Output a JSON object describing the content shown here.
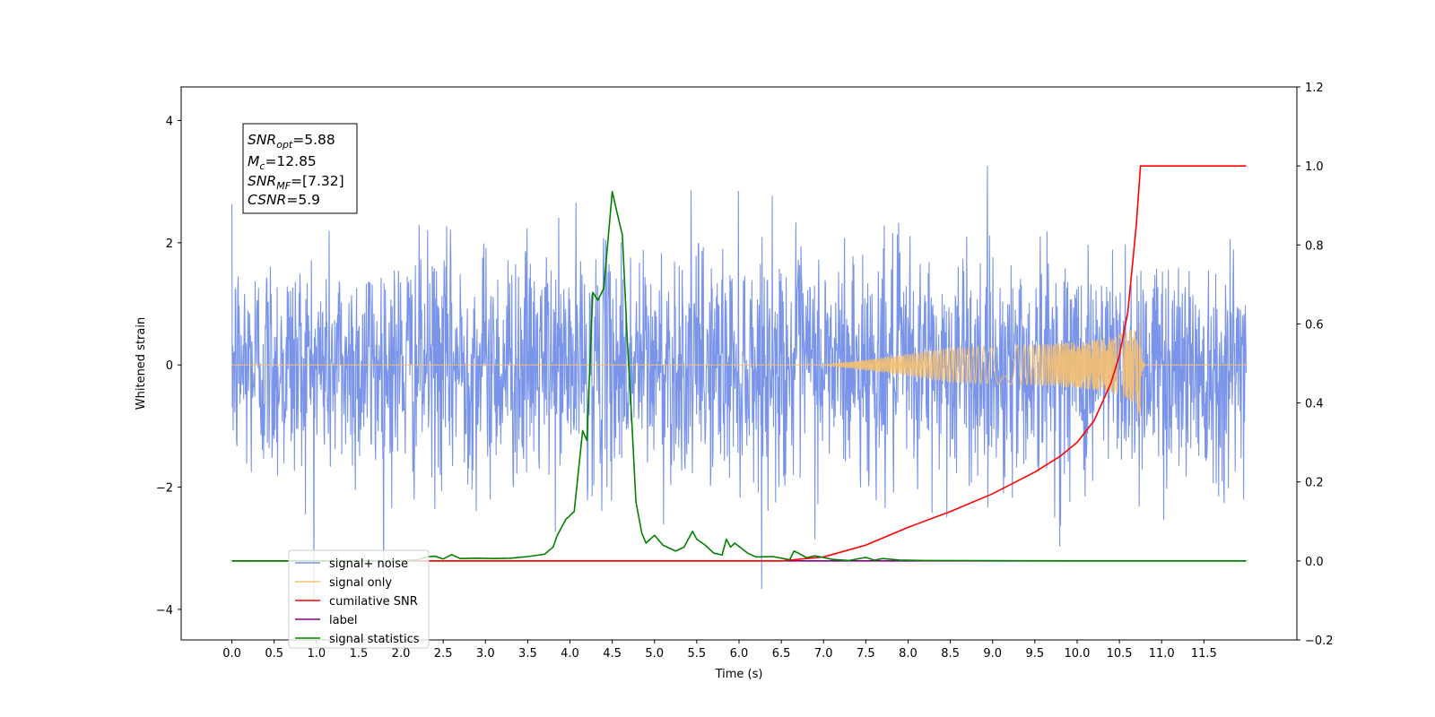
{
  "chart_data": {
    "type": "line",
    "title": "",
    "xlabel": "Time (s)",
    "ylabel": "Whitened strain",
    "xlim": [
      -0.6,
      12.6
    ],
    "ylim": [
      -4.5,
      4.55
    ],
    "y2lim": [
      -0.2,
      1.2
    ],
    "grid": false,
    "legend_position": "lower-left",
    "x_ticks": [
      "0.0",
      "0.5",
      "1.0",
      "1.5",
      "2.0",
      "2.5",
      "3.0",
      "3.5",
      "4.0",
      "4.5",
      "5.0",
      "5.5",
      "6.0",
      "6.5",
      "7.0",
      "7.5",
      "8.0",
      "8.5",
      "9.0",
      "9.5",
      "10.0",
      "10.5",
      "11.0",
      "11.5"
    ],
    "y_ticks": [
      "4",
      "2",
      "0",
      "−2",
      "−4"
    ],
    "y2_ticks": [
      "1.2",
      "1.0",
      "0.8",
      "0.6",
      "0.4",
      "0.2",
      "0.0",
      "−0.2"
    ],
    "annotation": {
      "snr_opt_sym": "SNR",
      "snr_opt_sub": "opt",
      "snr_opt_val": "=5.88",
      "mc_sym": "M",
      "mc_sub": "c",
      "mc_val": "=12.85",
      "snr_mf_sym": "SNR",
      "snr_mf_sub": "MF",
      "snr_mf_val": "=[7.32]",
      "csnr_sym": "CSNR",
      "csnr_val": "=5.9"
    },
    "series": [
      {
        "name": "signal+ noise",
        "axis": "left",
        "color": "#7994e8",
        "description_values": "whitened noise, approx gaussian, amplitude within about ±2.5 with spikes to ±4",
        "x_range": [
          0.0,
          12.0
        ],
        "envelope": [
          2.5,
          -2.5
        ]
      },
      {
        "name": "signal only",
        "axis": "left",
        "color": "#f5c071",
        "chirp_start": 7.0,
        "chirp_peak_time": 10.75,
        "chirp_peak_amp": 0.95,
        "x_range": [
          0.0,
          12.0
        ]
      },
      {
        "name": "cumilative SNR",
        "axis": "right",
        "color": "#ff0000",
        "x": [
          0.0,
          6.5,
          7.0,
          7.5,
          8.0,
          8.5,
          9.0,
          9.5,
          9.8,
          10.0,
          10.2,
          10.4,
          10.5,
          10.6,
          10.7,
          10.75,
          11.0,
          11.5,
          12.0
        ],
        "values": [
          0.0,
          0.0,
          0.01,
          0.04,
          0.085,
          0.125,
          0.17,
          0.225,
          0.265,
          0.3,
          0.355,
          0.45,
          0.52,
          0.63,
          0.85,
          1.0,
          1.0,
          1.0,
          1.0
        ]
      },
      {
        "name": "label",
        "axis": "right",
        "color": "#800080",
        "x": [
          0.0,
          12.0
        ],
        "values": [
          0.0,
          0.0
        ]
      },
      {
        "name": "signal statistics",
        "axis": "right",
        "color": "#008000",
        "x": [
          0.0,
          2.0,
          2.2,
          2.3,
          2.4,
          2.5,
          2.6,
          2.7,
          2.9,
          3.1,
          3.3,
          3.5,
          3.7,
          3.8,
          3.85,
          3.95,
          4.05,
          4.15,
          4.2,
          4.27,
          4.33,
          4.4,
          4.5,
          4.57,
          4.62,
          4.68,
          4.73,
          4.78,
          4.85,
          4.9,
          5.0,
          5.1,
          5.25,
          5.35,
          5.45,
          5.5,
          5.6,
          5.7,
          5.8,
          5.85,
          5.9,
          5.95,
          6.1,
          6.2,
          6.4,
          6.6,
          6.65,
          6.7,
          6.8,
          6.9,
          7.1,
          7.3,
          7.5,
          7.6,
          7.7,
          7.9,
          8.2,
          10.0,
          12.0
        ],
        "values": [
          0.0,
          0.0,
          0.003,
          0.01,
          0.012,
          0.005,
          0.016,
          0.006,
          0.007,
          0.006,
          0.007,
          0.011,
          0.017,
          0.035,
          0.065,
          0.105,
          0.125,
          0.33,
          0.305,
          0.68,
          0.66,
          0.69,
          0.935,
          0.87,
          0.825,
          0.55,
          0.36,
          0.15,
          0.07,
          0.045,
          0.065,
          0.04,
          0.025,
          0.035,
          0.075,
          0.055,
          0.04,
          0.02,
          0.015,
          0.055,
          0.035,
          0.045,
          0.02,
          0.01,
          0.011,
          0.003,
          0.025,
          0.02,
          0.008,
          0.013,
          0.004,
          0.001,
          0.009,
          0.002,
          0.006,
          0.002,
          0.001,
          0.0,
          0.0
        ]
      }
    ]
  },
  "legend": [
    {
      "label": "signal+ noise",
      "color": "#7994e8"
    },
    {
      "label": "signal only",
      "color": "#f5c071"
    },
    {
      "label": "cumilative SNR",
      "color": "#ff0000"
    },
    {
      "label": "label",
      "color": "#800080"
    },
    {
      "label": "signal statistics",
      "color": "#008000"
    }
  ]
}
